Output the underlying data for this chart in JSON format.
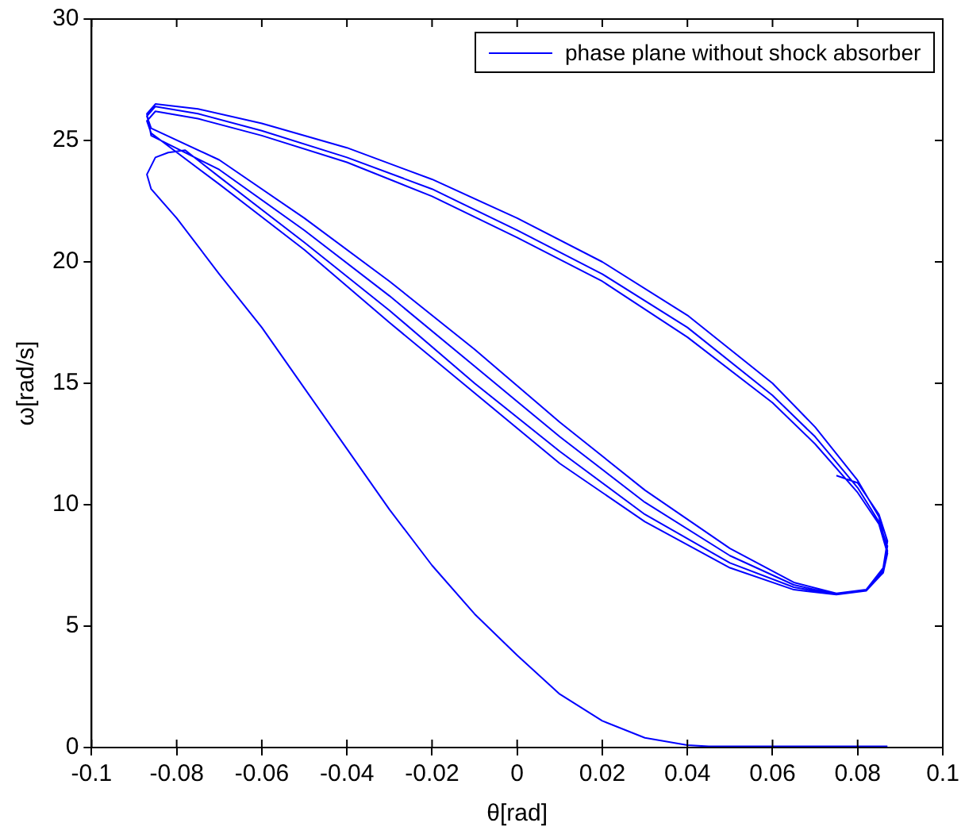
{
  "chart_data": {
    "type": "line",
    "xlabel": "θ[rad]",
    "ylabel": "ω[rad/s]",
    "xlim": [
      -0.1,
      0.1
    ],
    "ylim": [
      0,
      30
    ],
    "xticks": [
      -0.1,
      -0.08,
      -0.06,
      -0.04,
      -0.02,
      0,
      0.02,
      0.04,
      0.06,
      0.08,
      0.1
    ],
    "yticks": [
      0,
      5,
      10,
      15,
      20,
      25,
      30
    ],
    "grid": false,
    "legend": "top right",
    "marker": "none",
    "line_style": "solid",
    "series": [
      {
        "name": "phase plane without shock absorber",
        "color": "#0000ff",
        "x": [
          0.087,
          0.06,
          0.045,
          0.04,
          0.03,
          0.02,
          0.01,
          0,
          -0.01,
          -0.02,
          -0.03,
          -0.04,
          -0.05,
          -0.06,
          -0.07,
          -0.08,
          -0.086,
          -0.087,
          -0.085,
          -0.082,
          -0.078,
          -0.07,
          -0.05,
          -0.03,
          -0.01,
          0.01,
          0.03,
          0.05,
          0.065,
          0.075,
          0.082,
          0.086,
          0.087,
          0.085,
          0.08,
          0.07,
          0.06,
          0.04,
          0.02,
          0,
          -0.02,
          -0.04,
          -0.06,
          -0.075,
          -0.085,
          -0.087,
          -0.086,
          -0.07,
          -0.05,
          -0.03,
          -0.01,
          0.01,
          0.03,
          0.05,
          0.065,
          0.075,
          0.082,
          0.086,
          0.087,
          0.085,
          0.08,
          0.07,
          0.06,
          0.04,
          0.02,
          0,
          -0.02,
          -0.04,
          -0.06,
          -0.075,
          -0.085,
          -0.087,
          -0.086,
          -0.07,
          -0.05,
          -0.03,
          -0.01,
          0.01,
          0.03,
          0.05,
          0.065,
          0.075,
          0.082,
          0.086,
          0.087,
          0.085,
          0.08,
          0.07,
          0.06,
          0.04,
          0.02,
          0,
          -0.02,
          -0.04,
          -0.06,
          -0.075,
          -0.085,
          -0.087,
          -0.086,
          -0.07,
          -0.05,
          -0.03,
          -0.01,
          0.01,
          0.03,
          0.05,
          0.065,
          0.075,
          0.082,
          0.086,
          0.087,
          0.085,
          0.08,
          0.075
        ],
        "values": [
          0.05,
          0.05,
          0.05,
          0.1,
          0.4,
          1.1,
          2.2,
          3.8,
          5.5,
          7.5,
          9.8,
          12.3,
          14.8,
          17.3,
          19.5,
          21.8,
          23,
          23.6,
          24.3,
          24.5,
          24.6,
          23.5,
          20.8,
          18,
          15,
          12.2,
          9.6,
          7.6,
          6.6,
          6.3,
          6.5,
          7.3,
          8.3,
          9.3,
          10.7,
          12.8,
          14.5,
          17.3,
          19.5,
          21.3,
          23,
          24.3,
          25.4,
          26.1,
          26.4,
          26,
          25.5,
          24.2,
          21.8,
          19.2,
          16.4,
          13.4,
          10.6,
          8.2,
          6.8,
          6.35,
          6.5,
          7.2,
          8.1,
          9.5,
          11,
          13.2,
          15,
          17.8,
          20,
          21.8,
          23.4,
          24.7,
          25.7,
          26.3,
          26.5,
          26.1,
          25.2,
          23.8,
          21.3,
          18.6,
          15.7,
          12.8,
          10.1,
          7.9,
          6.7,
          6.3,
          6.45,
          7.2,
          8,
          9.2,
          10.5,
          12.5,
          14.2,
          16.9,
          19.2,
          21,
          22.7,
          24.1,
          25.2,
          25.9,
          26.2,
          25.8,
          25.3,
          23.2,
          20.5,
          17.5,
          14.6,
          11.7,
          9.3,
          7.4,
          6.5,
          6.3,
          6.5,
          7.4,
          8.5,
          9.6,
          10.9,
          11.2
        ]
      }
    ]
  }
}
